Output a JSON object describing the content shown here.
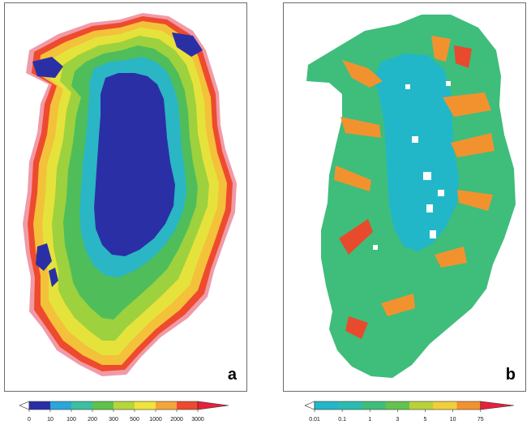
{
  "panels": [
    {
      "id": "a",
      "letter": "a",
      "colorbar": {
        "ticks": [
          "0",
          "10",
          "100",
          "200",
          "300",
          "500",
          "1000",
          "2000",
          "3000"
        ],
        "colors": [
          "#ffffff",
          "#2b2fa6",
          "#2aa6d8",
          "#3bbf9e",
          "#5fc24a",
          "#b6d63a",
          "#f1e43a",
          "#f4a53a",
          "#ee4a2e",
          "#e8203a"
        ]
      }
    },
    {
      "id": "b",
      "letter": "b",
      "colorbar": {
        "ticks": [
          "0.01",
          "0.1",
          "1",
          "3",
          "5",
          "10",
          "75"
        ],
        "colors": [
          "#ffffff",
          "#21b7c9",
          "#2bbcb0",
          "#3fbd7b",
          "#64c24e",
          "#b8d23a",
          "#f2cf38",
          "#f2922f",
          "#e8203a"
        ]
      }
    }
  ]
}
